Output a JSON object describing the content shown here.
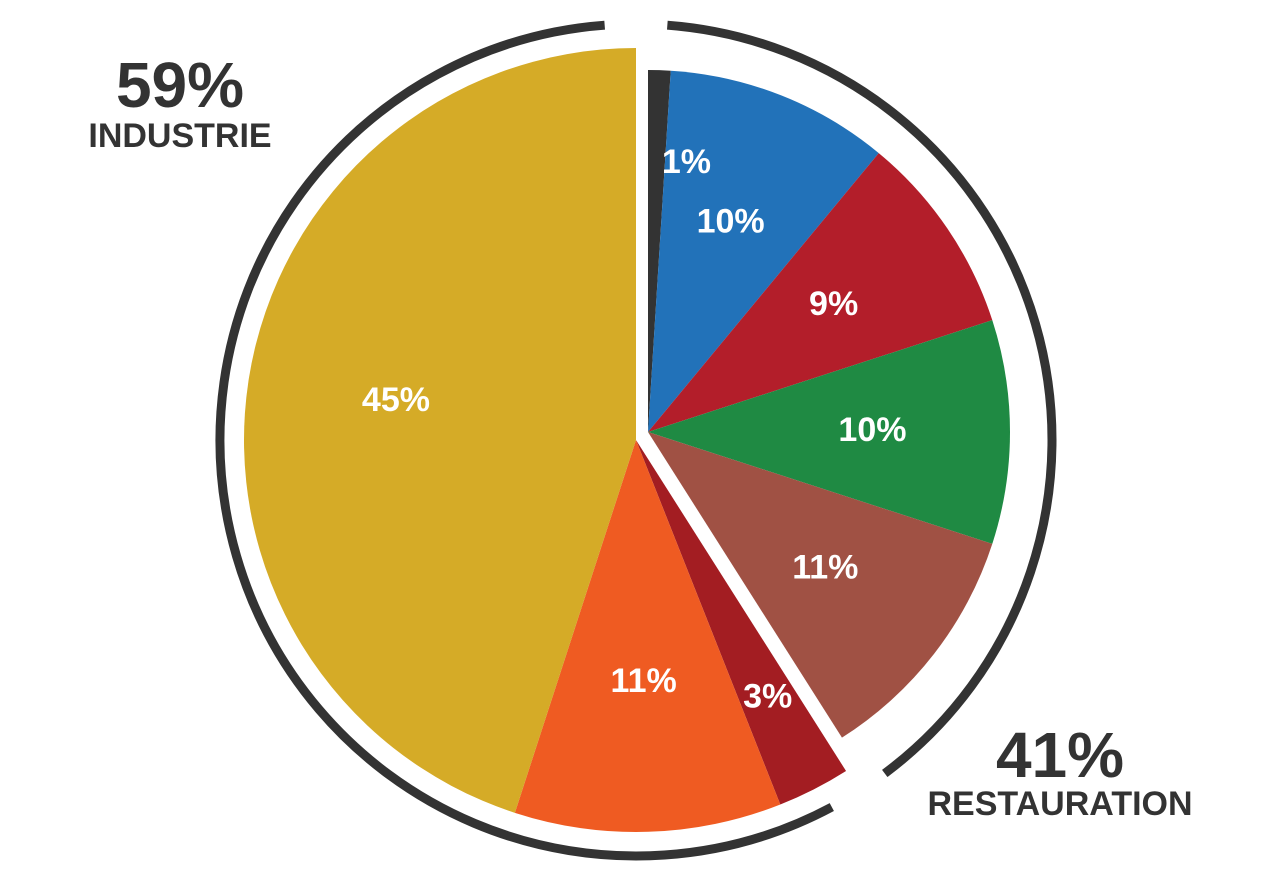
{
  "chart_data": {
    "type": "pie",
    "groups": [
      {
        "label": "RESTAURATION",
        "value": 41,
        "value_label": "41%",
        "values": [
          1,
          10,
          9,
          10,
          11
        ],
        "value_labels": [
          "1%",
          "10%",
          "9%",
          "10%",
          "11%"
        ],
        "colors": [
          "#333333",
          "#2272b9",
          "#b31e2a",
          "#1f8a43",
          "#a05144"
        ]
      },
      {
        "label": "INDUSTRIE",
        "value": 59,
        "value_label": "59%",
        "values": [
          3,
          11,
          45
        ],
        "value_labels": [
          "3%",
          "11%",
          "45%"
        ],
        "colors": [
          "#a31d22",
          "#ef5b22",
          "#d5ab27"
        ]
      }
    ],
    "ring_color": "#333333"
  }
}
